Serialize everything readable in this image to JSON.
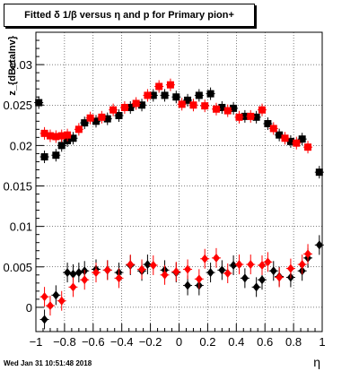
{
  "chart_data": {
    "type": "scatter",
    "title": "Fitted δ 1/β versus η and p for Primary pion+",
    "xlabel": "η",
    "ylabel": "z_{dBetaInv}",
    "xlim": [
      -1,
      1
    ],
    "ylim": [
      -0.003,
      0.034
    ],
    "grid": true,
    "x_ticks": [
      "−1",
      "−0.8",
      "−0.6",
      "−0.4",
      "−0.2",
      "0",
      "0.2",
      "0.4",
      "0.6",
      "0.8",
      "1"
    ],
    "y_ticks": [
      "0",
      "0.005",
      "0.01",
      "0.015",
      "0.02",
      "0.025",
      "0.03"
    ],
    "colors": {
      "series_black": "#000000",
      "series_red": "#ff0000"
    },
    "series": [
      {
        "color": "#000000",
        "marker": "square",
        "points": [
          [
            -0.98,
            0.0253
          ],
          [
            -0.94,
            0.0186
          ],
          [
            -0.86,
            0.0188
          ],
          [
            -0.82,
            0.02
          ],
          [
            -0.78,
            0.0206
          ],
          [
            -0.74,
            0.0209
          ],
          [
            -0.66,
            0.0228
          ],
          [
            -0.58,
            0.023
          ],
          [
            -0.5,
            0.0233
          ],
          [
            -0.42,
            0.0237
          ],
          [
            -0.34,
            0.0247
          ],
          [
            -0.26,
            0.025
          ],
          [
            -0.18,
            0.0262
          ],
          [
            -0.1,
            0.0262
          ],
          [
            -0.02,
            0.026
          ],
          [
            0.06,
            0.0256
          ],
          [
            0.14,
            0.0262
          ],
          [
            0.22,
            0.0264
          ],
          [
            0.3,
            0.0247
          ],
          [
            0.38,
            0.0246
          ],
          [
            0.46,
            0.0236
          ],
          [
            0.54,
            0.0235
          ],
          [
            0.62,
            0.0227
          ],
          [
            0.7,
            0.0213
          ],
          [
            0.78,
            0.0205
          ],
          [
            0.86,
            0.0208
          ],
          [
            0.98,
            0.0167
          ]
        ]
      },
      {
        "color": "#ff0000",
        "marker": "square",
        "points": [
          [
            -0.94,
            0.0215
          ],
          [
            -0.9,
            0.0212
          ],
          [
            -0.86,
            0.0211
          ],
          [
            -0.82,
            0.0212
          ],
          [
            -0.78,
            0.0213
          ],
          [
            -0.7,
            0.022
          ],
          [
            -0.62,
            0.0234
          ],
          [
            -0.54,
            0.0235
          ],
          [
            -0.46,
            0.0244
          ],
          [
            -0.38,
            0.0247
          ],
          [
            -0.3,
            0.0252
          ],
          [
            -0.22,
            0.0262
          ],
          [
            -0.14,
            0.0273
          ],
          [
            -0.06,
            0.0275
          ],
          [
            0.02,
            0.0251
          ],
          [
            0.1,
            0.025
          ],
          [
            0.18,
            0.0249
          ],
          [
            0.26,
            0.0245
          ],
          [
            0.34,
            0.0243
          ],
          [
            0.42,
            0.0235
          ],
          [
            0.5,
            0.0236
          ],
          [
            0.58,
            0.0244
          ],
          [
            0.66,
            0.0221
          ],
          [
            0.74,
            0.0209
          ],
          [
            0.82,
            0.0203
          ],
          [
            0.9,
            0.0198
          ]
        ]
      },
      {
        "color": "#000000",
        "marker": "diamond",
        "points": [
          [
            -0.94,
            -0.0015
          ],
          [
            -0.86,
            0.0015
          ],
          [
            -0.78,
            0.0043
          ],
          [
            -0.74,
            0.0041
          ],
          [
            -0.7,
            0.0043
          ],
          [
            -0.66,
            0.0045
          ],
          [
            -0.58,
            0.0047
          ],
          [
            -0.5,
            0.0046
          ],
          [
            -0.42,
            0.0043
          ],
          [
            -0.34,
            0.0052
          ],
          [
            -0.26,
            0.0045
          ],
          [
            -0.22,
            0.0053
          ],
          [
            -0.1,
            0.0046
          ],
          [
            -0.02,
            0.0043
          ],
          [
            0.06,
            0.0027
          ],
          [
            0.14,
            0.0027
          ],
          [
            0.22,
            0.0043
          ],
          [
            0.3,
            0.0046
          ],
          [
            0.38,
            0.0052
          ],
          [
            0.46,
            0.0036
          ],
          [
            0.54,
            0.0025
          ],
          [
            0.58,
            0.0034
          ],
          [
            0.66,
            0.0045
          ],
          [
            0.7,
            0.0038
          ],
          [
            0.78,
            0.0037
          ],
          [
            0.86,
            0.0045
          ],
          [
            0.9,
            0.0061
          ],
          [
            0.98,
            0.0077
          ]
        ]
      },
      {
        "color": "#ff0000",
        "marker": "diamond",
        "points": [
          [
            -0.94,
            0.0013
          ],
          [
            -0.9,
            0.0002
          ],
          [
            -0.82,
            0.0008
          ],
          [
            -0.74,
            0.0025
          ],
          [
            -0.66,
            0.0034
          ],
          [
            -0.58,
            0.0043
          ],
          [
            -0.5,
            0.0046
          ],
          [
            -0.42,
            0.0036
          ],
          [
            -0.34,
            0.0053
          ],
          [
            -0.26,
            0.0047
          ],
          [
            -0.18,
            0.0052
          ],
          [
            -0.1,
            0.004
          ],
          [
            -0.02,
            0.0044
          ],
          [
            0.06,
            0.0047
          ],
          [
            0.14,
            0.0035
          ],
          [
            0.18,
            0.006
          ],
          [
            0.26,
            0.0061
          ],
          [
            0.34,
            0.0042
          ],
          [
            0.42,
            0.0053
          ],
          [
            0.5,
            0.0053
          ],
          [
            0.58,
            0.0052
          ],
          [
            0.62,
            0.0056
          ],
          [
            0.7,
            0.0037
          ],
          [
            0.78,
            0.0048
          ],
          [
            0.86,
            0.0053
          ],
          [
            0.9,
            0.0066
          ]
        ]
      }
    ]
  },
  "footer": {
    "timestamp": "Wed Jan 31 10:51:48 2018"
  }
}
